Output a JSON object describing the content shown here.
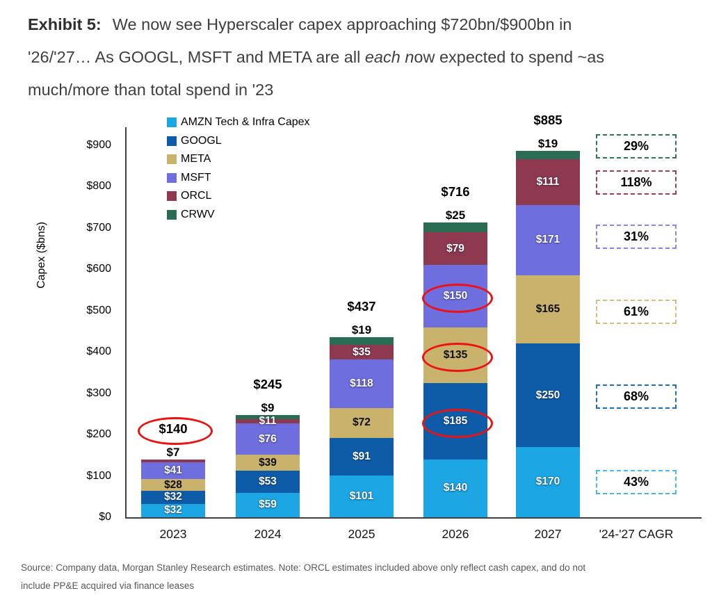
{
  "header": {
    "exhibit_label": "Exhibit 5:",
    "title_line1": "We now see Hyperscaler capex approaching $720bn/$900bn in",
    "title_line2_pre": "'26/'27… As GOOGL, MSFT and META are all ",
    "title_line2_italic": "each n",
    "title_line2_post": "ow expected to spend ~as",
    "title_line3": "much/more than total spend in '23"
  },
  "chart_data": {
    "type": "stacked-bar",
    "title": "",
    "xlabel": "",
    "ylabel": "Capex ($bns)",
    "ylim": [
      0,
      900
    ],
    "ytick_step": 100,
    "yticks": [
      "$0",
      "$100",
      "$200",
      "$300",
      "$400",
      "$500",
      "$600",
      "$700",
      "$800",
      "$900"
    ],
    "grid": false,
    "legend_position": "top-left-inside",
    "categories": [
      "2023",
      "2024",
      "2025",
      "2026",
      "2027"
    ],
    "x_axis_extra_label": "'24-'27 CAGR",
    "series": [
      {
        "key": "AMZN",
        "legend_label": "AMZN Tech & Infra Capex",
        "color": "#1CA6E4",
        "cagr_box_color": "#45B9ED",
        "label_style": "light",
        "values": [
          32,
          59,
          101,
          140,
          170
        ],
        "labels": [
          "$32",
          "$59",
          "$101",
          "$140",
          "$170"
        ],
        "label_placement": [
          "in",
          "in",
          "in",
          "in",
          "in"
        ],
        "circled": [
          false,
          false,
          false,
          false,
          false
        ],
        "cagr": "43%",
        "cagr_axis_center": 84
      },
      {
        "key": "GOOGL",
        "legend_label": "GOOGL",
        "color": "#0E5CA8",
        "cagr_box_color": "#1B6FBE",
        "label_style": "light",
        "values": [
          32,
          53,
          91,
          185,
          250
        ],
        "labels": [
          "$32",
          "$53",
          "$91",
          "$185",
          "$250"
        ],
        "label_placement": [
          "in",
          "in",
          "in",
          "in",
          "in"
        ],
        "circled": [
          false,
          false,
          false,
          true,
          false
        ],
        "cagr": "68%",
        "cagr_axis_center": 291
      },
      {
        "key": "META",
        "legend_label": "META",
        "color": "#C9B26C",
        "cagr_box_color": "#D5BE79",
        "label_style": "dark",
        "values": [
          28,
          39,
          72,
          135,
          165
        ],
        "labels": [
          "$28",
          "$39",
          "$72",
          "$135",
          "$165"
        ],
        "label_placement": [
          "in",
          "in",
          "in",
          "in",
          "in"
        ],
        "circled": [
          false,
          false,
          false,
          true,
          false
        ],
        "cagr": "61%",
        "cagr_axis_center": 496
      },
      {
        "key": "MSFT",
        "legend_label": "MSFT",
        "color": "#6E6EDE",
        "cagr_box_color": "#8585EC",
        "label_style": "light",
        "values": [
          41,
          76,
          118,
          150,
          171
        ],
        "labels": [
          "$41",
          "$76",
          "$118",
          "$150",
          "$171"
        ],
        "label_placement": [
          "in",
          "in",
          "in",
          "in",
          "in"
        ],
        "circled": [
          false,
          false,
          false,
          true,
          false
        ],
        "cagr": "31%",
        "cagr_axis_center": 678
      },
      {
        "key": "ORCL",
        "legend_label": "ORCL",
        "color": "#8E3950",
        "cagr_box_color": "#9B3F50",
        "label_style": "light",
        "values": [
          7,
          11,
          35,
          79,
          111
        ],
        "labels": [
          "$7",
          "$11",
          "$35",
          "$79",
          "$111"
        ],
        "label_placement": [
          "above",
          "in",
          "in",
          "in",
          "in"
        ],
        "circled": [
          false,
          false,
          false,
          false,
          false
        ],
        "cagr": "118%",
        "cagr_axis_center": 809
      },
      {
        "key": "CRWV",
        "legend_label": "CRWV",
        "color": "#2B6C55",
        "cagr_box_color": "#2F7258",
        "label_style": "light",
        "values": [
          0,
          9,
          19,
          25,
          19
        ],
        "labels": [
          "",
          "$9",
          "$19",
          "$25",
          "$19"
        ],
        "label_placement": [
          "none",
          "above",
          "above",
          "above",
          "above"
        ],
        "circled": [
          false,
          false,
          false,
          false,
          false
        ],
        "cagr": "29%",
        "cagr_axis_center": 896
      }
    ],
    "totals": [
      "$140",
      "$245",
      "$437",
      "$716",
      "$885"
    ],
    "totals_circled": [
      true,
      false,
      false,
      false,
      false
    ],
    "accent_colors": {
      "circle_red": "#EE1111",
      "axis": "#3F3F3F"
    }
  },
  "footer": {
    "line1": "Source: Company data, Morgan Stanley Research estimates. Note: ORCL estimates included above only reflect cash capex, and do not",
    "line2": "include PP&E acquired via finance leases"
  }
}
